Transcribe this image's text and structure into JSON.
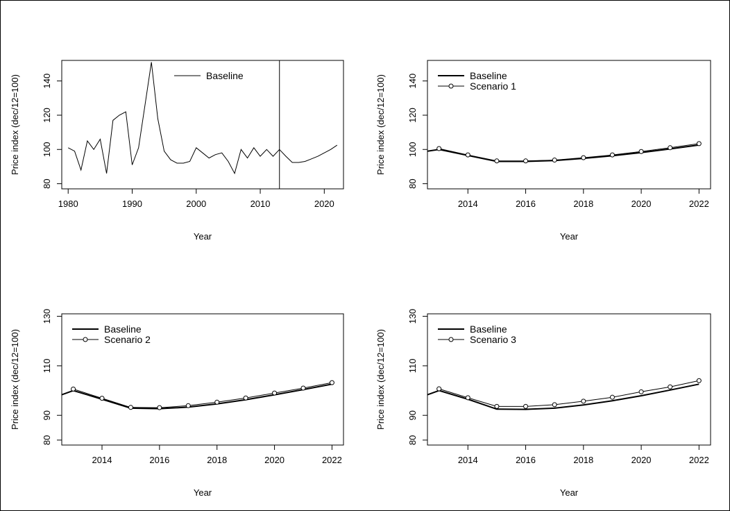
{
  "chart_data": [
    {
      "id": "p1",
      "type": "line",
      "xlabel": "Year",
      "ylabel": "Price index (dec/12=100)",
      "xlim": [
        1979,
        2023
      ],
      "ylim": [
        77,
        152
      ],
      "xticks": [
        1980,
        1990,
        2000,
        2010,
        2020
      ],
      "yticks": [
        80,
        100,
        120,
        140
      ],
      "vline": 2013,
      "legend": "top-center",
      "series": [
        {
          "name": "Baseline",
          "markers": false,
          "lwd": 1,
          "points": [
            [
              1980,
              101
            ],
            [
              1981,
              99
            ],
            [
              1982,
              88
            ],
            [
              1983,
              105
            ],
            [
              1984,
              100
            ],
            [
              1985,
              106
            ],
            [
              1986,
              86
            ],
            [
              1987,
              117
            ],
            [
              1988,
              120
            ],
            [
              1989,
              122
            ],
            [
              1990,
              91
            ],
            [
              1991,
              101
            ],
            [
              1992,
              126
            ],
            [
              1993,
              151
            ],
            [
              1994,
              118
            ],
            [
              1995,
              99
            ],
            [
              1996,
              94
            ],
            [
              1997,
              92
            ],
            [
              1998,
              92
            ],
            [
              1999,
              93
            ],
            [
              2000,
              101
            ],
            [
              2001,
              98
            ],
            [
              2002,
              95
            ],
            [
              2003,
              97
            ],
            [
              2004,
              98
            ],
            [
              2005,
              93
            ],
            [
              2006,
              86
            ],
            [
              2007,
              100
            ],
            [
              2008,
              95
            ],
            [
              2009,
              101
            ],
            [
              2010,
              96
            ],
            [
              2011,
              100
            ],
            [
              2012,
              96
            ],
            [
              2013,
              100
            ],
            [
              2014,
              96
            ],
            [
              2015,
              92.4
            ],
            [
              2016,
              92.4
            ],
            [
              2017,
              93
            ],
            [
              2018,
              94.5
            ],
            [
              2019,
              96
            ],
            [
              2020,
              98
            ],
            [
              2021,
              100
            ],
            [
              2022,
              102.5
            ]
          ]
        }
      ]
    },
    {
      "id": "p2",
      "type": "line",
      "xlabel": "Year",
      "ylabel": "Price index (dec/12=100)",
      "xlim": [
        2012.6,
        2022.4
      ],
      "ylim": [
        77,
        152
      ],
      "xticks": [
        2014,
        2016,
        2018,
        2020,
        2022
      ],
      "yticks": [
        80,
        100,
        120,
        140
      ],
      "legend": "top-left",
      "series": [
        {
          "name": "Baseline",
          "markers": false,
          "lwd": 2,
          "points": [
            [
              2012.6,
              99
            ],
            [
              2013,
              100
            ],
            [
              2014,
              96.5
            ],
            [
              2015,
              93
            ],
            [
              2016,
              93
            ],
            [
              2017,
              93.5
            ],
            [
              2018,
              94.8
            ],
            [
              2019,
              96.3
            ],
            [
              2020,
              98.2
            ],
            [
              2021,
              100.3
            ],
            [
              2022,
              102.6
            ]
          ]
        },
        {
          "name": "Scenario 1",
          "markers": true,
          "lwd": 1,
          "points": [
            [
              2013,
              100.5
            ],
            [
              2014,
              96.8
            ],
            [
              2015,
              93.3
            ],
            [
              2016,
              93.3
            ],
            [
              2017,
              93.8
            ],
            [
              2018,
              95.2
            ],
            [
              2019,
              96.8
            ],
            [
              2020,
              98.8
            ],
            [
              2021,
              101
            ],
            [
              2022,
              103.4
            ]
          ]
        }
      ]
    },
    {
      "id": "p3",
      "type": "line",
      "xlabel": "Year",
      "ylabel": "Price index (dec/12=100)",
      "xlim": [
        2012.6,
        2022.4
      ],
      "ylim": [
        78,
        131
      ],
      "xticks": [
        2014,
        2016,
        2018,
        2020,
        2022
      ],
      "yticks": [
        80,
        90,
        110,
        130
      ],
      "legend": "top-left",
      "series": [
        {
          "name": "Baseline",
          "markers": false,
          "lwd": 2,
          "points": [
            [
              2012.6,
              98.3
            ],
            [
              2013,
              100
            ],
            [
              2014,
              96.5
            ],
            [
              2015,
              92.9
            ],
            [
              2016,
              92.7
            ],
            [
              2017,
              93.3
            ],
            [
              2018,
              94.6
            ],
            [
              2019,
              96.3
            ],
            [
              2020,
              98.3
            ],
            [
              2021,
              100.4
            ],
            [
              2022,
              102.6
            ]
          ]
        },
        {
          "name": "Scenario 2",
          "markers": true,
          "lwd": 1,
          "points": [
            [
              2013,
              100.6
            ],
            [
              2014,
              96.9
            ],
            [
              2015,
              93.2
            ],
            [
              2016,
              93.1
            ],
            [
              2017,
              93.9
            ],
            [
              2018,
              95.3
            ],
            [
              2019,
              97
            ],
            [
              2020,
              99
            ],
            [
              2021,
              101
            ],
            [
              2022,
              103.2
            ]
          ]
        }
      ]
    },
    {
      "id": "p4",
      "type": "line",
      "xlabel": "Year",
      "ylabel": "Price index (dec/12=100)",
      "xlim": [
        2012.6,
        2022.4
      ],
      "ylim": [
        78,
        131
      ],
      "xticks": [
        2014,
        2016,
        2018,
        2020,
        2022
      ],
      "yticks": [
        80,
        90,
        110,
        130
      ],
      "legend": "top-left",
      "series": [
        {
          "name": "Baseline",
          "markers": false,
          "lwd": 2,
          "points": [
            [
              2012.6,
              98.3
            ],
            [
              2013,
              100
            ],
            [
              2014,
              96.5
            ],
            [
              2015,
              92.5
            ],
            [
              2016,
              92.4
            ],
            [
              2017,
              92.9
            ],
            [
              2018,
              94.2
            ],
            [
              2019,
              95.9
            ],
            [
              2020,
              97.9
            ],
            [
              2021,
              100.2
            ],
            [
              2022,
              102.6
            ]
          ]
        },
        {
          "name": "Scenario 3",
          "markers": true,
          "lwd": 1,
          "points": [
            [
              2013,
              100.7
            ],
            [
              2014,
              97.1
            ],
            [
              2015,
              93.6
            ],
            [
              2016,
              93.6
            ],
            [
              2017,
              94.3
            ],
            [
              2018,
              95.7
            ],
            [
              2019,
              97.3
            ],
            [
              2020,
              99.5
            ],
            [
              2021,
              101.5
            ],
            [
              2022,
              104
            ]
          ]
        }
      ]
    }
  ]
}
